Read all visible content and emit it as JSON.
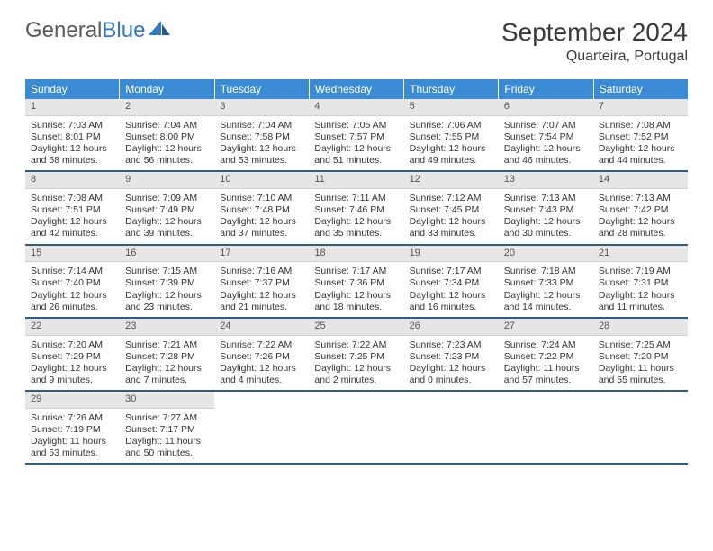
{
  "logo": {
    "text1": "General",
    "text2": "Blue"
  },
  "title": "September 2024",
  "location": "Quarteira, Portugal",
  "colors": {
    "header_bg": "#3b8bd4",
    "row_divider": "#2f5d8a",
    "daynum_bg": "#e6e6e6",
    "text": "#333333",
    "logo_gray": "#5a5a5a",
    "logo_blue": "#2f78c2"
  },
  "daysOfWeek": [
    "Sunday",
    "Monday",
    "Tuesday",
    "Wednesday",
    "Thursday",
    "Friday",
    "Saturday"
  ],
  "weeks": [
    [
      {
        "n": "1",
        "sunrise": "Sunrise: 7:03 AM",
        "sunset": "Sunset: 8:01 PM",
        "daylight": "Daylight: 12 hours and 58 minutes."
      },
      {
        "n": "2",
        "sunrise": "Sunrise: 7:04 AM",
        "sunset": "Sunset: 8:00 PM",
        "daylight": "Daylight: 12 hours and 56 minutes."
      },
      {
        "n": "3",
        "sunrise": "Sunrise: 7:04 AM",
        "sunset": "Sunset: 7:58 PM",
        "daylight": "Daylight: 12 hours and 53 minutes."
      },
      {
        "n": "4",
        "sunrise": "Sunrise: 7:05 AM",
        "sunset": "Sunset: 7:57 PM",
        "daylight": "Daylight: 12 hours and 51 minutes."
      },
      {
        "n": "5",
        "sunrise": "Sunrise: 7:06 AM",
        "sunset": "Sunset: 7:55 PM",
        "daylight": "Daylight: 12 hours and 49 minutes."
      },
      {
        "n": "6",
        "sunrise": "Sunrise: 7:07 AM",
        "sunset": "Sunset: 7:54 PM",
        "daylight": "Daylight: 12 hours and 46 minutes."
      },
      {
        "n": "7",
        "sunrise": "Sunrise: 7:08 AM",
        "sunset": "Sunset: 7:52 PM",
        "daylight": "Daylight: 12 hours and 44 minutes."
      }
    ],
    [
      {
        "n": "8",
        "sunrise": "Sunrise: 7:08 AM",
        "sunset": "Sunset: 7:51 PM",
        "daylight": "Daylight: 12 hours and 42 minutes."
      },
      {
        "n": "9",
        "sunrise": "Sunrise: 7:09 AM",
        "sunset": "Sunset: 7:49 PM",
        "daylight": "Daylight: 12 hours and 39 minutes."
      },
      {
        "n": "10",
        "sunrise": "Sunrise: 7:10 AM",
        "sunset": "Sunset: 7:48 PM",
        "daylight": "Daylight: 12 hours and 37 minutes."
      },
      {
        "n": "11",
        "sunrise": "Sunrise: 7:11 AM",
        "sunset": "Sunset: 7:46 PM",
        "daylight": "Daylight: 12 hours and 35 minutes."
      },
      {
        "n": "12",
        "sunrise": "Sunrise: 7:12 AM",
        "sunset": "Sunset: 7:45 PM",
        "daylight": "Daylight: 12 hours and 33 minutes."
      },
      {
        "n": "13",
        "sunrise": "Sunrise: 7:13 AM",
        "sunset": "Sunset: 7:43 PM",
        "daylight": "Daylight: 12 hours and 30 minutes."
      },
      {
        "n": "14",
        "sunrise": "Sunrise: 7:13 AM",
        "sunset": "Sunset: 7:42 PM",
        "daylight": "Daylight: 12 hours and 28 minutes."
      }
    ],
    [
      {
        "n": "15",
        "sunrise": "Sunrise: 7:14 AM",
        "sunset": "Sunset: 7:40 PM",
        "daylight": "Daylight: 12 hours and 26 minutes."
      },
      {
        "n": "16",
        "sunrise": "Sunrise: 7:15 AM",
        "sunset": "Sunset: 7:39 PM",
        "daylight": "Daylight: 12 hours and 23 minutes."
      },
      {
        "n": "17",
        "sunrise": "Sunrise: 7:16 AM",
        "sunset": "Sunset: 7:37 PM",
        "daylight": "Daylight: 12 hours and 21 minutes."
      },
      {
        "n": "18",
        "sunrise": "Sunrise: 7:17 AM",
        "sunset": "Sunset: 7:36 PM",
        "daylight": "Daylight: 12 hours and 18 minutes."
      },
      {
        "n": "19",
        "sunrise": "Sunrise: 7:17 AM",
        "sunset": "Sunset: 7:34 PM",
        "daylight": "Daylight: 12 hours and 16 minutes."
      },
      {
        "n": "20",
        "sunrise": "Sunrise: 7:18 AM",
        "sunset": "Sunset: 7:33 PM",
        "daylight": "Daylight: 12 hours and 14 minutes."
      },
      {
        "n": "21",
        "sunrise": "Sunrise: 7:19 AM",
        "sunset": "Sunset: 7:31 PM",
        "daylight": "Daylight: 12 hours and 11 minutes."
      }
    ],
    [
      {
        "n": "22",
        "sunrise": "Sunrise: 7:20 AM",
        "sunset": "Sunset: 7:29 PM",
        "daylight": "Daylight: 12 hours and 9 minutes."
      },
      {
        "n": "23",
        "sunrise": "Sunrise: 7:21 AM",
        "sunset": "Sunset: 7:28 PM",
        "daylight": "Daylight: 12 hours and 7 minutes."
      },
      {
        "n": "24",
        "sunrise": "Sunrise: 7:22 AM",
        "sunset": "Sunset: 7:26 PM",
        "daylight": "Daylight: 12 hours and 4 minutes."
      },
      {
        "n": "25",
        "sunrise": "Sunrise: 7:22 AM",
        "sunset": "Sunset: 7:25 PM",
        "daylight": "Daylight: 12 hours and 2 minutes."
      },
      {
        "n": "26",
        "sunrise": "Sunrise: 7:23 AM",
        "sunset": "Sunset: 7:23 PM",
        "daylight": "Daylight: 12 hours and 0 minutes."
      },
      {
        "n": "27",
        "sunrise": "Sunrise: 7:24 AM",
        "sunset": "Sunset: 7:22 PM",
        "daylight": "Daylight: 11 hours and 57 minutes."
      },
      {
        "n": "28",
        "sunrise": "Sunrise: 7:25 AM",
        "sunset": "Sunset: 7:20 PM",
        "daylight": "Daylight: 11 hours and 55 minutes."
      }
    ],
    [
      {
        "n": "29",
        "sunrise": "Sunrise: 7:26 AM",
        "sunset": "Sunset: 7:19 PM",
        "daylight": "Daylight: 11 hours and 53 minutes."
      },
      {
        "n": "30",
        "sunrise": "Sunrise: 7:27 AM",
        "sunset": "Sunset: 7:17 PM",
        "daylight": "Daylight: 11 hours and 50 minutes."
      },
      null,
      null,
      null,
      null,
      null
    ]
  ]
}
